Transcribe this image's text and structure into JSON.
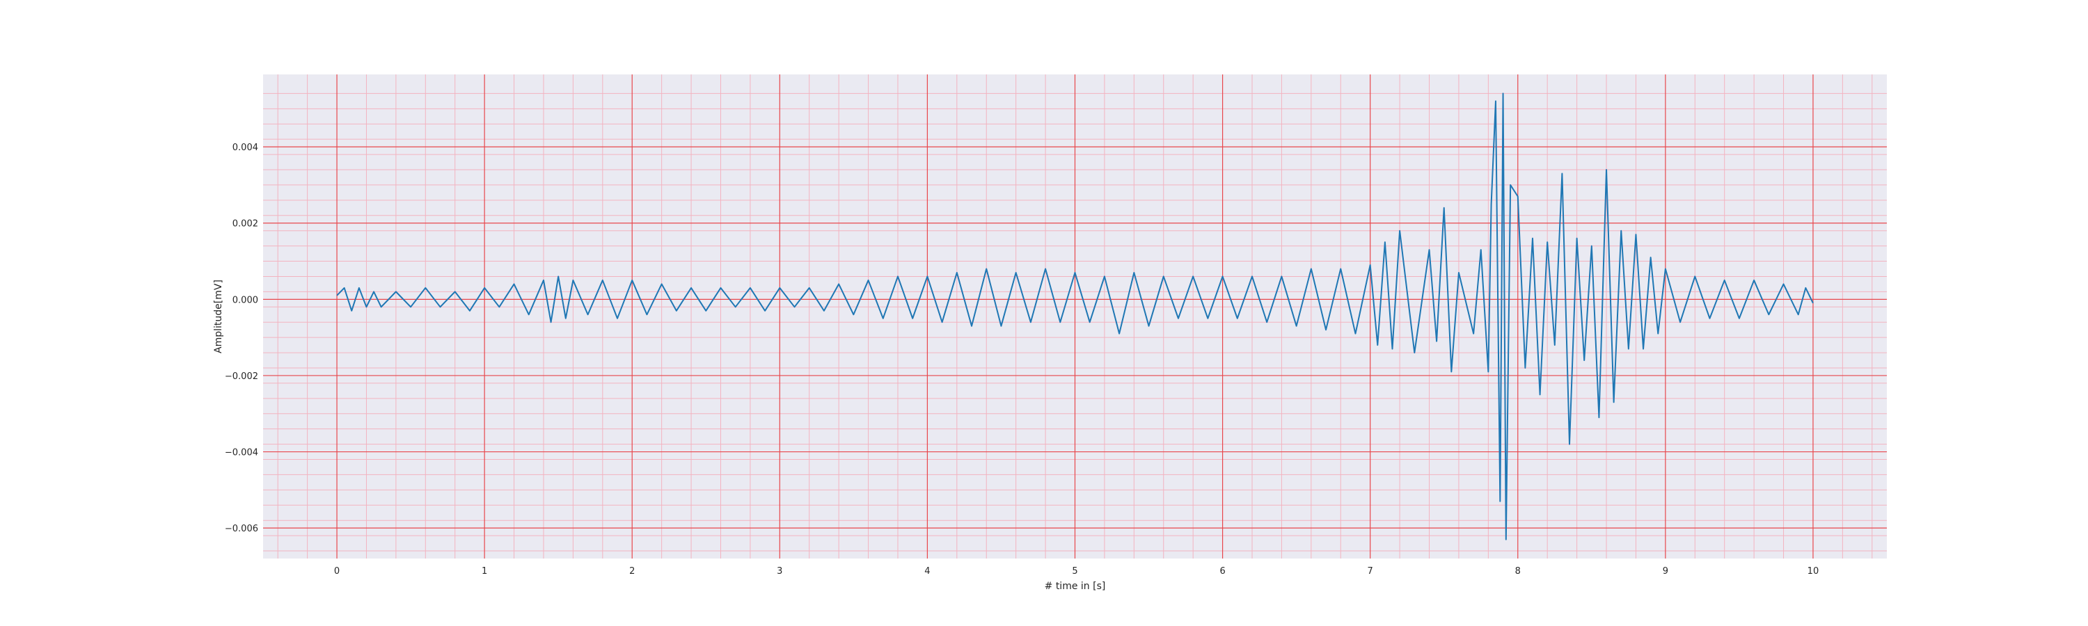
{
  "chart_data": {
    "type": "line",
    "title": "",
    "xlabel": "# time in [s]",
    "ylabel": "Amplitude[mV]",
    "xlim": [
      -0.5,
      10.5
    ],
    "ylim": [
      -0.0068,
      0.0059
    ],
    "xticks": [
      0,
      1,
      2,
      3,
      4,
      5,
      6,
      7,
      8,
      9,
      10
    ],
    "xtick_labels": [
      "0",
      "1",
      "2",
      "3",
      "4",
      "5",
      "6",
      "7",
      "8",
      "9",
      "10"
    ],
    "yticks": [
      0.004,
      0.002,
      0.0,
      -0.002,
      -0.004,
      -0.006
    ],
    "ytick_labels": [
      "0.004",
      "0.002",
      "0.000",
      "−0.002",
      "−0.004",
      "−0.006"
    ],
    "grid": true,
    "minor_grid": true,
    "colors": {
      "background": "#eaeaf2",
      "major_grid": "#e8474c",
      "minor_grid": "#f3b3c0",
      "line": "#1f77b4"
    },
    "series": [
      {
        "x": [
          0.0,
          0.05,
          0.1,
          0.15,
          0.2,
          0.25,
          0.3,
          0.4,
          0.5,
          0.6,
          0.7,
          0.8,
          0.9,
          1.0,
          1.1,
          1.2,
          1.3,
          1.4,
          1.45,
          1.5,
          1.55,
          1.6,
          1.7,
          1.8,
          1.9,
          2.0,
          2.1,
          2.2,
          2.3,
          2.4,
          2.5,
          2.6,
          2.7,
          2.8,
          2.9,
          3.0,
          3.1,
          3.2,
          3.3,
          3.4,
          3.5,
          3.6,
          3.7,
          3.8,
          3.9,
          4.0,
          4.1,
          4.2,
          4.3,
          4.4,
          4.5,
          4.6,
          4.7,
          4.8,
          4.9,
          5.0,
          5.1,
          5.2,
          5.3,
          5.4,
          5.5,
          5.6,
          5.7,
          5.8,
          5.9,
          6.0,
          6.1,
          6.2,
          6.3,
          6.4,
          6.5,
          6.6,
          6.7,
          6.8,
          6.9,
          7.0,
          7.05,
          7.1,
          7.15,
          7.2,
          7.3,
          7.4,
          7.45,
          7.5,
          7.55,
          7.6,
          7.7,
          7.75,
          7.8,
          7.82,
          7.85,
          7.88,
          7.9,
          7.92,
          7.95,
          8.0,
          8.05,
          8.1,
          8.15,
          8.2,
          8.25,
          8.3,
          8.35,
          8.4,
          8.45,
          8.5,
          8.55,
          8.6,
          8.65,
          8.7,
          8.75,
          8.8,
          8.85,
          8.9,
          8.95,
          9.0,
          9.1,
          9.2,
          9.3,
          9.4,
          9.5,
          9.6,
          9.7,
          9.8,
          9.9,
          9.95,
          10.0
        ],
        "y": [
          0.0001,
          0.0003,
          -0.0003,
          0.0003,
          -0.0002,
          0.0002,
          -0.0002,
          0.0002,
          -0.0002,
          0.0003,
          -0.0002,
          0.0002,
          -0.0003,
          0.0003,
          -0.0002,
          0.0004,
          -0.0004,
          0.0005,
          -0.0006,
          0.0006,
          -0.0005,
          0.0005,
          -0.0004,
          0.0005,
          -0.0005,
          0.0005,
          -0.0004,
          0.0004,
          -0.0003,
          0.0003,
          -0.0003,
          0.0003,
          -0.0002,
          0.0003,
          -0.0003,
          0.0003,
          -0.0002,
          0.0003,
          -0.0003,
          0.0004,
          -0.0004,
          0.0005,
          -0.0005,
          0.0006,
          -0.0005,
          0.0006,
          -0.0006,
          0.0007,
          -0.0007,
          0.0008,
          -0.0007,
          0.0007,
          -0.0006,
          0.0008,
          -0.0006,
          0.0007,
          -0.0006,
          0.0006,
          -0.0009,
          0.0007,
          -0.0007,
          0.0006,
          -0.0005,
          0.0006,
          -0.0005,
          0.0006,
          -0.0005,
          0.0006,
          -0.0006,
          0.0006,
          -0.0007,
          0.0008,
          -0.0008,
          0.0008,
          -0.0009,
          0.0009,
          -0.0012,
          0.0015,
          -0.0013,
          0.0018,
          -0.0014,
          0.0013,
          -0.0011,
          0.0024,
          -0.0019,
          0.0007,
          -0.0009,
          0.0013,
          -0.0019,
          0.0025,
          0.0052,
          -0.0053,
          0.0054,
          -0.0063,
          0.003,
          0.0027,
          -0.0018,
          0.0016,
          -0.0025,
          0.0015,
          -0.0012,
          0.0033,
          -0.0038,
          0.0016,
          -0.0016,
          0.0014,
          -0.0031,
          0.0034,
          -0.0027,
          0.0018,
          -0.0013,
          0.0017,
          -0.0013,
          0.0011,
          -0.0009,
          0.0008,
          -0.0006,
          0.0006,
          -0.0005,
          0.0005,
          -0.0005,
          0.0005,
          -0.0004,
          0.0004,
          -0.0004,
          0.0003,
          -0.0001
        ]
      }
    ]
  }
}
